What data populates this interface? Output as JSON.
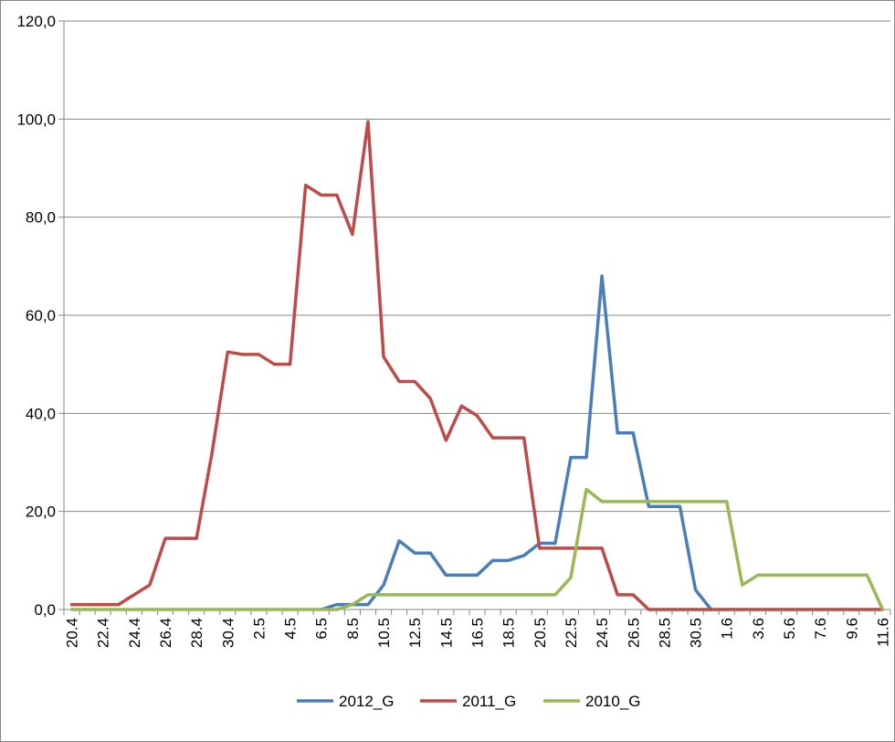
{
  "chart_data": {
    "type": "line",
    "title": "",
    "xlabel": "",
    "ylabel": "",
    "ylim": [
      0,
      120
    ],
    "y_ticks": [
      "0,0",
      "20,0",
      "40,0",
      "60,0",
      "80,0",
      "100,0",
      "120,0"
    ],
    "grid": "horizontal",
    "legend_position": "bottom",
    "categories": [
      "20.4",
      "21.4",
      "22.4",
      "23.4",
      "24.4",
      "25.4",
      "26.4",
      "27.4",
      "28.4",
      "29.4",
      "30.4",
      "1.5",
      "2.5",
      "3.5",
      "4.5",
      "5.5",
      "6.5",
      "7.5",
      "8.5",
      "9.5",
      "10.5",
      "11.5",
      "12.5",
      "13.5",
      "14.5",
      "15.5",
      "16.5",
      "17.5",
      "18.5",
      "19.5",
      "20.5",
      "21.5",
      "22.5",
      "23.5",
      "24.5",
      "25.5",
      "26.5",
      "27.5",
      "28.5",
      "29.5",
      "30.5",
      "31.5",
      "1.6",
      "2.6",
      "3.6",
      "4.6",
      "5.6",
      "6.6",
      "7.6",
      "8.6",
      "9.6",
      "10.6",
      "11.6"
    ],
    "x_tick_labels": [
      "20.4",
      "22.4",
      "24.4",
      "26.4",
      "28.4",
      "30.4",
      "2.5",
      "4.5",
      "6.5",
      "8.5",
      "10.5",
      "12.5",
      "14.5",
      "16.5",
      "18.5",
      "20.5",
      "22.5",
      "24.5",
      "26.5",
      "28.5",
      "30.5",
      "1.6",
      "3.6",
      "5.6",
      "7.6",
      "9.6",
      "11.6"
    ],
    "series": [
      {
        "name": "2012_G",
        "color": "#4a7ebb",
        "values": [
          null,
          null,
          null,
          null,
          null,
          null,
          null,
          null,
          null,
          null,
          null,
          null,
          null,
          null,
          null,
          null,
          0,
          1,
          1,
          1,
          5,
          14,
          11.5,
          11.5,
          7,
          7,
          7,
          10,
          10,
          11,
          13.5,
          13.5,
          31,
          31,
          68,
          36,
          36,
          21,
          21,
          21,
          4,
          0,
          null,
          null,
          null,
          null,
          null,
          null,
          null,
          null,
          null,
          null,
          null
        ]
      },
      {
        "name": "2011_G",
        "color": "#be4b48",
        "values": [
          1,
          1,
          1,
          1,
          3,
          5,
          14.5,
          14.5,
          14.5,
          32,
          52.5,
          52,
          52,
          50,
          50,
          86.5,
          84.5,
          84.5,
          76.5,
          99.5,
          51.5,
          46.5,
          46.5,
          43,
          34.5,
          41.5,
          39.5,
          35,
          35,
          35,
          12.5,
          12.5,
          12.5,
          12.5,
          12.5,
          3,
          3,
          0,
          0,
          0,
          0,
          0,
          0,
          0,
          0,
          0,
          0,
          0,
          0,
          0,
          0,
          0,
          0
        ]
      },
      {
        "name": "2010_G",
        "color": "#98b954",
        "values": [
          0,
          0,
          0,
          0,
          0,
          0,
          0,
          0,
          0,
          0,
          0,
          0,
          0,
          0,
          0,
          0,
          0,
          0,
          1,
          3,
          3,
          3,
          3,
          3,
          3,
          3,
          3,
          3,
          3,
          3,
          3,
          3,
          6.5,
          24.5,
          22,
          22,
          22,
          22,
          22,
          22,
          22,
          22,
          22,
          5,
          7,
          7,
          7,
          7,
          7,
          7,
          7,
          7,
          0
        ]
      }
    ]
  }
}
